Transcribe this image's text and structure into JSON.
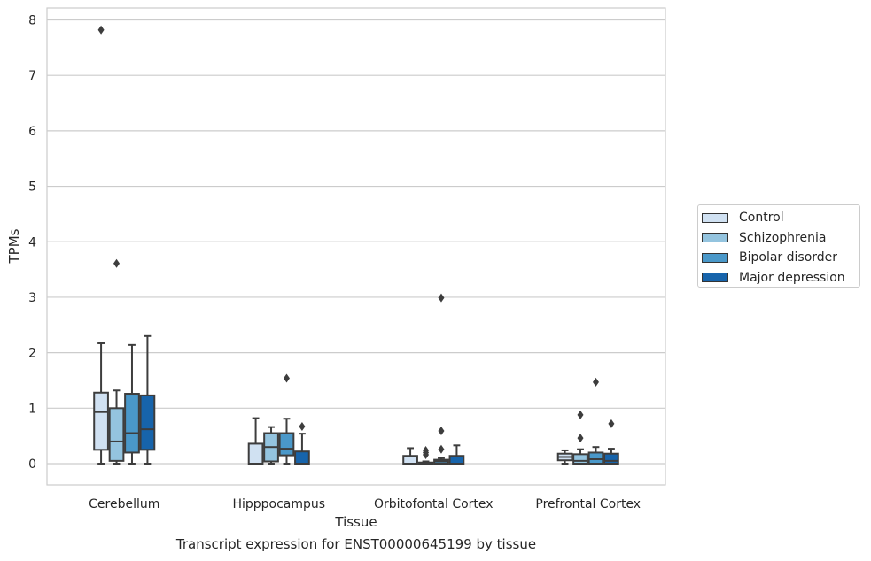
{
  "chart_data": {
    "type": "box",
    "title": "Transcript expression for ENST00000645199 by tissue",
    "xlabel": "Tissue",
    "ylabel": "TPMs",
    "ylim": [
      -0.38,
      8.22
    ],
    "yticks": [
      0,
      1,
      2,
      3,
      4,
      5,
      6,
      7,
      8
    ],
    "grid": true,
    "legend_position": "right",
    "categories": [
      "Cerebellum",
      "Hipppocampus",
      "Orbitofontal Cortex",
      "Prefrontal Cortex"
    ],
    "series": [
      {
        "name": "Control",
        "color": "#d0e1f2",
        "boxes": [
          {
            "min": 0.0,
            "q1": 0.25,
            "median": 0.93,
            "q3": 1.28,
            "max": 2.17,
            "outliers": [
              7.82
            ]
          },
          {
            "min": 0.0,
            "q1": 0.0,
            "median": 0.0,
            "q3": 0.36,
            "max": 0.82,
            "outliers": []
          },
          {
            "min": 0.0,
            "q1": 0.0,
            "median": 0.0,
            "q3": 0.14,
            "max": 0.28,
            "outliers": []
          },
          {
            "min": 0.0,
            "q1": 0.06,
            "median": 0.12,
            "q3": 0.18,
            "max": 0.24,
            "outliers": []
          }
        ]
      },
      {
        "name": "Schizophrenia",
        "color": "#94c4df",
        "boxes": [
          {
            "min": 0.0,
            "q1": 0.05,
            "median": 0.4,
            "q3": 1.0,
            "max": 1.32,
            "outliers": [
              3.61
            ]
          },
          {
            "min": 0.0,
            "q1": 0.04,
            "median": 0.3,
            "q3": 0.55,
            "max": 0.66,
            "outliers": []
          },
          {
            "min": 0.0,
            "q1": 0.0,
            "median": 0.01,
            "q3": 0.02,
            "max": 0.04,
            "outliers": [
              0.16,
              0.2,
              0.24
            ]
          },
          {
            "min": 0.0,
            "q1": 0.0,
            "median": 0.05,
            "q3": 0.17,
            "max": 0.26,
            "outliers": [
              0.46,
              0.88
            ]
          }
        ]
      },
      {
        "name": "Bipolar disorder",
        "color": "#4a98c9",
        "boxes": [
          {
            "min": 0.0,
            "q1": 0.2,
            "median": 0.55,
            "q3": 1.26,
            "max": 2.14,
            "outliers": []
          },
          {
            "min": 0.0,
            "q1": 0.15,
            "median": 0.27,
            "q3": 0.55,
            "max": 0.81,
            "outliers": [
              1.54
            ]
          },
          {
            "min": 0.0,
            "q1": 0.0,
            "median": 0.04,
            "q3": 0.07,
            "max": 0.1,
            "outliers": [
              0.26,
              0.59,
              2.99
            ]
          },
          {
            "min": 0.0,
            "q1": 0.0,
            "median": 0.08,
            "q3": 0.2,
            "max": 0.3,
            "outliers": [
              1.47
            ]
          }
        ]
      },
      {
        "name": "Major depression",
        "color": "#1764ab",
        "boxes": [
          {
            "min": 0.0,
            "q1": 0.25,
            "median": 0.62,
            "q3": 1.23,
            "max": 2.3,
            "outliers": []
          },
          {
            "min": 0.0,
            "q1": 0.0,
            "median": 0.0,
            "q3": 0.22,
            "max": 0.54,
            "outliers": [
              0.67
            ]
          },
          {
            "min": 0.0,
            "q1": 0.0,
            "median": 0.0,
            "q3": 0.14,
            "max": 0.33,
            "outliers": []
          },
          {
            "min": 0.0,
            "q1": 0.0,
            "median": 0.05,
            "q3": 0.18,
            "max": 0.27,
            "outliers": [
              0.72
            ]
          }
        ]
      }
    ]
  }
}
